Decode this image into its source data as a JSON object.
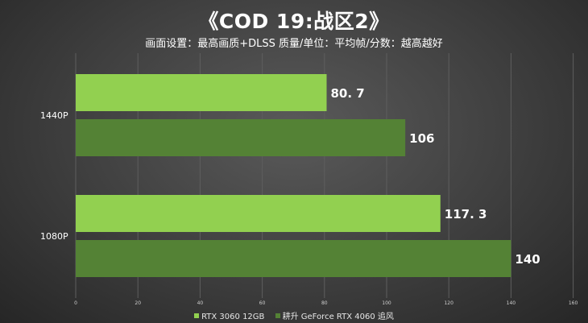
{
  "title": "《COD 19:战区2》",
  "subtitle": "画面设置：最高画质+DLSS 质量/单位：平均帧/分数：越高越好",
  "chart_data": {
    "type": "bar",
    "orientation": "horizontal",
    "categories": [
      "1440P",
      "1080P"
    ],
    "series": [
      {
        "name": "RTX 3060 12GB",
        "values": [
          80.7,
          117.3
        ],
        "labels": [
          "80. 7",
          "117. 3"
        ],
        "color": "#92d050"
      },
      {
        "name": "耕升 GeForce RTX 4060 追风",
        "values": [
          106,
          140
        ],
        "labels": [
          "106",
          "140"
        ],
        "color": "#548235"
      }
    ],
    "xlim": [
      0,
      160
    ],
    "xticks": [
      0,
      20,
      40,
      60,
      80,
      100,
      120,
      140,
      160
    ],
    "grid": true,
    "legend_position": "bottom"
  }
}
